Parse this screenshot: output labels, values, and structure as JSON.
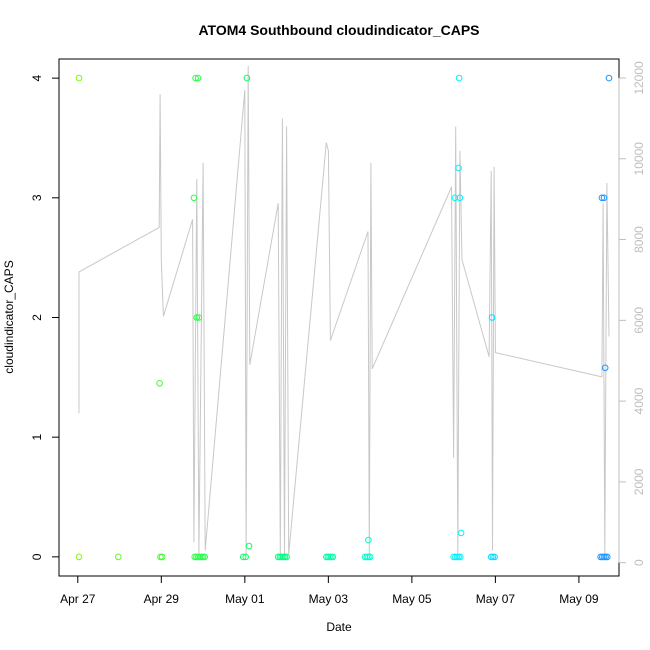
{
  "chart_data": {
    "type": "scatter",
    "title": "ATOM4 Southbound cloudindicator_CAPS",
    "xlabel": "Date",
    "ylabel": "cloudindicator_CAPS",
    "x_ticks": [
      "Apr 27",
      "Apr 29",
      "May 01",
      "May 03",
      "May 05",
      "May 07",
      "May 09"
    ],
    "y_ticks": [
      "0",
      "1",
      "2",
      "3",
      "4"
    ],
    "y2_ticks": [
      "0",
      "2000",
      "4000",
      "6000",
      "8000",
      "10000",
      "12000"
    ],
    "xlim_days": [
      -0.45,
      12.96
    ],
    "ylim": [
      -0.16,
      4.16
    ],
    "y2lim": [
      -330,
      12470
    ],
    "grid": false,
    "legend": "none",
    "colors": {
      "axis": "#000000",
      "secondary_axis": "#bebebe",
      "line": "#c8c8c8",
      "point_ramp": [
        "#7cfc00",
        "#00ff66",
        "#00ffff",
        "#1e90ff"
      ]
    },
    "points": [
      {
        "d": 0.03,
        "y": 4
      },
      {
        "d": 0.03,
        "y": 0
      },
      {
        "d": 0.97,
        "y": 0
      },
      {
        "d": 1.96,
        "y": 1.45
      },
      {
        "d": 1.98,
        "y": 0
      },
      {
        "d": 2.02,
        "y": 0
      },
      {
        "d": 2.78,
        "y": 3
      },
      {
        "d": 2.82,
        "y": 4
      },
      {
        "d": 2.85,
        "y": 2
      },
      {
        "d": 2.88,
        "y": 4
      },
      {
        "d": 2.9,
        "y": 2
      },
      {
        "d": 2.8,
        "y": 0
      },
      {
        "d": 2.84,
        "y": 0
      },
      {
        "d": 2.88,
        "y": 0
      },
      {
        "d": 2.92,
        "y": 0
      },
      {
        "d": 2.96,
        "y": 0
      },
      {
        "d": 3.0,
        "y": 0
      },
      {
        "d": 3.04,
        "y": 0
      },
      {
        "d": 3.96,
        "y": 0
      },
      {
        "d": 4.02,
        "y": 0
      },
      {
        "d": 4.05,
        "y": 4
      },
      {
        "d": 4.1,
        "y": 0.09
      },
      {
        "d": 4.8,
        "y": 0
      },
      {
        "d": 4.84,
        "y": 0
      },
      {
        "d": 4.88,
        "y": 0
      },
      {
        "d": 4.92,
        "y": 0
      },
      {
        "d": 4.96,
        "y": 0
      },
      {
        "d": 5.0,
        "y": 0
      },
      {
        "d": 5.95,
        "y": 0
      },
      {
        "d": 5.99,
        "y": 0
      },
      {
        "d": 6.03,
        "y": 0
      },
      {
        "d": 6.07,
        "y": 0
      },
      {
        "d": 6.11,
        "y": 0
      },
      {
        "d": 6.88,
        "y": 0
      },
      {
        "d": 6.92,
        "y": 0
      },
      {
        "d": 6.96,
        "y": 0
      },
      {
        "d": 7.0,
        "y": 0
      },
      {
        "d": 6.96,
        "y": 0.14
      },
      {
        "d": 9.03,
        "y": 3
      },
      {
        "d": 9.12,
        "y": 3.25
      },
      {
        "d": 9.15,
        "y": 3
      },
      {
        "d": 9.13,
        "y": 4
      },
      {
        "d": 9.18,
        "y": 0.2
      },
      {
        "d": 9.0,
        "y": 0
      },
      {
        "d": 9.04,
        "y": 0
      },
      {
        "d": 9.08,
        "y": 0
      },
      {
        "d": 9.12,
        "y": 0
      },
      {
        "d": 9.16,
        "y": 0
      },
      {
        "d": 9.92,
        "y": 2
      },
      {
        "d": 9.9,
        "y": 0
      },
      {
        "d": 9.94,
        "y": 0
      },
      {
        "d": 9.98,
        "y": 0
      },
      {
        "d": 12.55,
        "y": 3
      },
      {
        "d": 12.6,
        "y": 3
      },
      {
        "d": 12.63,
        "y": 1.58
      },
      {
        "d": 12.72,
        "y": 4
      },
      {
        "d": 12.52,
        "y": 0
      },
      {
        "d": 12.56,
        "y": 0
      },
      {
        "d": 12.6,
        "y": 0
      },
      {
        "d": 12.64,
        "y": 0
      },
      {
        "d": 12.68,
        "y": 0
      }
    ],
    "secondary_line": [
      {
        "d": 0.03,
        "v": 3700
      },
      {
        "d": 0.03,
        "v": 7200
      },
      {
        "d": 1.95,
        "v": 8300
      },
      {
        "d": 1.97,
        "v": 11600
      },
      {
        "d": 2.0,
        "v": 7500
      },
      {
        "d": 2.05,
        "v": 6100
      },
      {
        "d": 2.75,
        "v": 8500
      },
      {
        "d": 2.78,
        "v": 500
      },
      {
        "d": 2.85,
        "v": 9500
      },
      {
        "d": 2.9,
        "v": 200
      },
      {
        "d": 3.0,
        "v": 9900
      },
      {
        "d": 3.05,
        "v": 300
      },
      {
        "d": 4.0,
        "v": 11700
      },
      {
        "d": 4.03,
        "v": 200
      },
      {
        "d": 4.08,
        "v": 12300
      },
      {
        "d": 4.12,
        "v": 4900
      },
      {
        "d": 4.8,
        "v": 8900
      },
      {
        "d": 4.85,
        "v": 200
      },
      {
        "d": 4.9,
        "v": 11000
      },
      {
        "d": 4.95,
        "v": 100
      },
      {
        "d": 5.0,
        "v": 10800
      },
      {
        "d": 5.05,
        "v": 200
      },
      {
        "d": 5.95,
        "v": 10400
      },
      {
        "d": 6.0,
        "v": 10200
      },
      {
        "d": 6.05,
        "v": 5500
      },
      {
        "d": 6.95,
        "v": 8200
      },
      {
        "d": 6.98,
        "v": 200
      },
      {
        "d": 7.02,
        "v": 9900
      },
      {
        "d": 7.05,
        "v": 4800
      },
      {
        "d": 8.95,
        "v": 9300
      },
      {
        "d": 9.0,
        "v": 2600
      },
      {
        "d": 9.05,
        "v": 10800
      },
      {
        "d": 9.1,
        "v": 200
      },
      {
        "d": 9.15,
        "v": 10200
      },
      {
        "d": 9.2,
        "v": 7500
      },
      {
        "d": 9.85,
        "v": 5100
      },
      {
        "d": 9.9,
        "v": 9700
      },
      {
        "d": 9.93,
        "v": 300
      },
      {
        "d": 9.97,
        "v": 9800
      },
      {
        "d": 10.0,
        "v": 5200
      },
      {
        "d": 12.55,
        "v": 4600
      },
      {
        "d": 12.58,
        "v": 8900
      },
      {
        "d": 12.62,
        "v": 200
      },
      {
        "d": 12.67,
        "v": 9400
      },
      {
        "d": 12.72,
        "v": 5600
      }
    ]
  }
}
